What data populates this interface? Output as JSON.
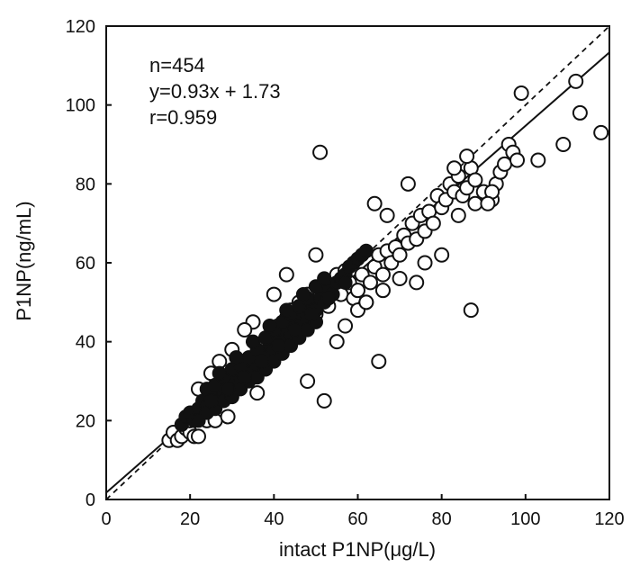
{
  "chart_data": {
    "type": "scatter",
    "title": "",
    "xlabel": "intact P1NP(μg/L)",
    "ylabel": "P1NP(ng/mL)",
    "xlim": [
      0,
      120
    ],
    "ylim": [
      0,
      120
    ],
    "x_ticks": [
      "0",
      "20",
      "40",
      "60",
      "80",
      "100",
      "120"
    ],
    "y_ticks": [
      "0",
      "20",
      "40",
      "60",
      "80",
      "100",
      "120"
    ],
    "grid": false,
    "legend": "none",
    "annotations": [
      "n=454",
      "y=0.93x + 1.73",
      "r=0.959"
    ],
    "regression_line": {
      "slope": 0.93,
      "intercept": 1.73,
      "style": "solid"
    },
    "identity_line": {
      "slope": 1,
      "intercept": 0,
      "style": "dashed"
    },
    "series": [
      {
        "marker": "open-circle",
        "points": [
          [
            15,
            15
          ],
          [
            16,
            17
          ],
          [
            17,
            15
          ],
          [
            18,
            16
          ],
          [
            19,
            18
          ],
          [
            20,
            17
          ],
          [
            21,
            16
          ],
          [
            22,
            16
          ],
          [
            20,
            20
          ],
          [
            22,
            22
          ],
          [
            23,
            24
          ],
          [
            24,
            20
          ],
          [
            25,
            22
          ],
          [
            26,
            24
          ],
          [
            24,
            26
          ],
          [
            27,
            27
          ],
          [
            26,
            20
          ],
          [
            29,
            21
          ],
          [
            28,
            30
          ],
          [
            30,
            28
          ],
          [
            31,
            33
          ],
          [
            32,
            29
          ],
          [
            33,
            35
          ],
          [
            34,
            31
          ],
          [
            35,
            36
          ],
          [
            36,
            27
          ],
          [
            37,
            34
          ],
          [
            38,
            40
          ],
          [
            39,
            36
          ],
          [
            40,
            38
          ],
          [
            41,
            44
          ],
          [
            42,
            40
          ],
          [
            43,
            46
          ],
          [
            44,
            48
          ],
          [
            45,
            45
          ],
          [
            46,
            50
          ],
          [
            47,
            44
          ],
          [
            48,
            52
          ],
          [
            49,
            49
          ],
          [
            50,
            47
          ],
          [
            51,
            52
          ],
          [
            52,
            55
          ],
          [
            53,
            49
          ],
          [
            54,
            53
          ],
          [
            55,
            57
          ],
          [
            56,
            52
          ],
          [
            57,
            58
          ],
          [
            58,
            55
          ],
          [
            59,
            51
          ],
          [
            60,
            53
          ],
          [
            61,
            57
          ],
          [
            62,
            50
          ],
          [
            63,
            55
          ],
          [
            64,
            59
          ],
          [
            65,
            62
          ],
          [
            66,
            57
          ],
          [
            67,
            63
          ],
          [
            68,
            60
          ],
          [
            69,
            64
          ],
          [
            70,
            62
          ],
          [
            71,
            67
          ],
          [
            72,
            65
          ],
          [
            73,
            70
          ],
          [
            74,
            66
          ],
          [
            75,
            72
          ],
          [
            76,
            68
          ],
          [
            77,
            73
          ],
          [
            78,
            70
          ],
          [
            79,
            77
          ],
          [
            80,
            74
          ],
          [
            81,
            76
          ],
          [
            82,
            80
          ],
          [
            83,
            78
          ],
          [
            84,
            82
          ],
          [
            85,
            77
          ],
          [
            86,
            79
          ],
          [
            87,
            84
          ],
          [
            88,
            81
          ],
          [
            90,
            78
          ],
          [
            92,
            76
          ],
          [
            93,
            80
          ],
          [
            94,
            83
          ],
          [
            95,
            85
          ],
          [
            96,
            90
          ],
          [
            97,
            88
          ],
          [
            98,
            86
          ],
          [
            99,
            103
          ],
          [
            103,
            86
          ],
          [
            109,
            90
          ],
          [
            112,
            106
          ],
          [
            113,
            98
          ],
          [
            118,
            93
          ],
          [
            51,
            88
          ],
          [
            87,
            48
          ],
          [
            65,
            35
          ],
          [
            48,
            30
          ],
          [
            52,
            25
          ],
          [
            50,
            62
          ],
          [
            43,
            57
          ],
          [
            40,
            52
          ],
          [
            35,
            45
          ],
          [
            33,
            43
          ],
          [
            30,
            38
          ],
          [
            27,
            35
          ],
          [
            25,
            32
          ],
          [
            22,
            28
          ],
          [
            55,
            40
          ],
          [
            57,
            44
          ],
          [
            60,
            48
          ],
          [
            62,
            50
          ],
          [
            66,
            53
          ],
          [
            70,
            56
          ],
          [
            74,
            55
          ],
          [
            76,
            60
          ],
          [
            80,
            62
          ],
          [
            84,
            72
          ],
          [
            88,
            75
          ],
          [
            92,
            78
          ],
          [
            64,
            75
          ],
          [
            67,
            72
          ],
          [
            72,
            80
          ],
          [
            83,
            84
          ],
          [
            86,
            87
          ],
          [
            91,
            75
          ]
        ]
      },
      {
        "marker": "filled-dense",
        "points": [
          [
            18,
            19
          ],
          [
            19,
            21
          ],
          [
            20,
            22
          ],
          [
            21,
            20
          ],
          [
            22,
            23
          ],
          [
            23,
            25
          ],
          [
            24,
            24
          ],
          [
            25,
            27
          ],
          [
            26,
            26
          ],
          [
            27,
            28
          ],
          [
            28,
            27
          ],
          [
            29,
            30
          ],
          [
            30,
            29
          ],
          [
            31,
            31
          ],
          [
            32,
            30
          ],
          [
            33,
            33
          ],
          [
            34,
            32
          ],
          [
            35,
            35
          ],
          [
            36,
            34
          ],
          [
            37,
            37
          ],
          [
            38,
            36
          ],
          [
            39,
            39
          ],
          [
            40,
            38
          ],
          [
            41,
            41
          ],
          [
            42,
            40
          ],
          [
            43,
            43
          ],
          [
            44,
            42
          ],
          [
            45,
            45
          ],
          [
            46,
            44
          ],
          [
            47,
            47
          ],
          [
            48,
            46
          ],
          [
            49,
            49
          ],
          [
            50,
            48
          ],
          [
            51,
            51
          ],
          [
            52,
            50
          ],
          [
            53,
            53
          ],
          [
            54,
            52
          ],
          [
            55,
            55
          ],
          [
            56,
            56
          ],
          [
            57,
            57
          ],
          [
            58,
            59
          ],
          [
            59,
            60
          ],
          [
            60,
            61
          ],
          [
            61,
            62
          ],
          [
            62,
            63
          ],
          [
            24,
            28
          ],
          [
            26,
            29
          ],
          [
            28,
            31
          ],
          [
            30,
            33
          ],
          [
            32,
            34
          ],
          [
            34,
            36
          ],
          [
            36,
            38
          ],
          [
            38,
            41
          ],
          [
            40,
            43
          ],
          [
            42,
            45
          ],
          [
            44,
            47
          ],
          [
            46,
            49
          ],
          [
            48,
            51
          ],
          [
            50,
            54
          ],
          [
            52,
            56
          ],
          [
            22,
            20
          ],
          [
            24,
            22
          ],
          [
            26,
            23
          ],
          [
            28,
            25
          ],
          [
            30,
            26
          ],
          [
            32,
            28
          ],
          [
            34,
            30
          ],
          [
            36,
            31
          ],
          [
            38,
            33
          ],
          [
            40,
            35
          ],
          [
            42,
            37
          ],
          [
            44,
            39
          ],
          [
            46,
            41
          ],
          [
            48,
            43
          ],
          [
            50,
            45
          ],
          [
            27,
            32
          ],
          [
            31,
            36
          ],
          [
            35,
            40
          ],
          [
            39,
            44
          ],
          [
            43,
            48
          ],
          [
            47,
            52
          ],
          [
            25,
            25
          ],
          [
            29,
            28
          ],
          [
            33,
            31
          ],
          [
            37,
            35
          ],
          [
            41,
            39
          ],
          [
            45,
            43
          ],
          [
            49,
            47
          ],
          [
            53,
            51
          ],
          [
            57,
            55
          ]
        ]
      }
    ]
  }
}
